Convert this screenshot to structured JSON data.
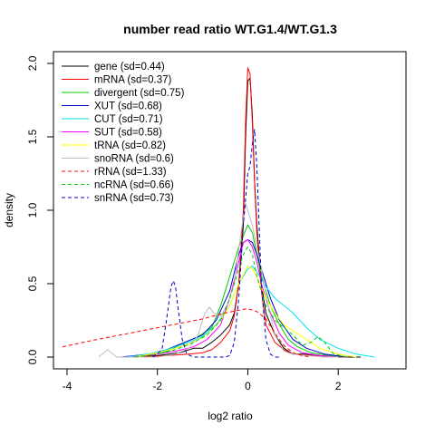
{
  "chart_data": {
    "type": "line",
    "title": "number read ratio WT.G1.4/WT.G1.3",
    "xlabel": "log2 ratio",
    "ylabel": "density",
    "xlim": [
      -4.3,
      3.5
    ],
    "ylim": [
      -0.08,
      2.08
    ],
    "xticks": [
      -4,
      -2,
      0,
      2
    ],
    "xtick_labels": [
      "-4",
      "-2",
      "0",
      "2"
    ],
    "yticks": [
      0.0,
      0.5,
      1.0,
      1.5,
      2.0
    ],
    "ytick_labels": [
      "0.0",
      "0.5",
      "1.0",
      "1.5",
      "2.0"
    ],
    "grid": false,
    "legend_position": "top-left",
    "series": [
      {
        "name": "gene (sd=0.44)",
        "color": "#000000",
        "dash": "solid",
        "x": [
          -2.6,
          -2.0,
          -1.5,
          -1.2,
          -1.0,
          -0.8,
          -0.6,
          -0.4,
          -0.3,
          -0.2,
          -0.1,
          -0.05,
          0.0,
          0.05,
          0.1,
          0.15,
          0.2,
          0.3,
          0.4,
          0.6,
          0.8,
          1.0,
          1.3,
          1.6,
          2.0,
          2.5
        ],
        "y": [
          0.0,
          0.01,
          0.03,
          0.06,
          0.06,
          0.1,
          0.15,
          0.22,
          0.3,
          0.5,
          0.9,
          1.5,
          1.88,
          1.9,
          1.65,
          1.2,
          0.9,
          0.5,
          0.3,
          0.15,
          0.06,
          0.02,
          0.02,
          0.01,
          0.0,
          0.0
        ]
      },
      {
        "name": "mRNA (sd=0.37)",
        "color": "#ff0000",
        "dash": "solid",
        "x": [
          -2.4,
          -1.8,
          -1.3,
          -1.0,
          -0.8,
          -0.6,
          -0.4,
          -0.3,
          -0.2,
          -0.1,
          -0.05,
          0.0,
          0.05,
          0.1,
          0.15,
          0.2,
          0.3,
          0.4,
          0.6,
          0.8,
          1.0,
          1.4,
          1.8,
          2.2
        ],
        "y": [
          0.0,
          0.01,
          0.02,
          0.03,
          0.05,
          0.1,
          0.18,
          0.28,
          0.5,
          1.0,
          1.6,
          1.97,
          1.93,
          1.6,
          1.2,
          0.85,
          0.45,
          0.22,
          0.1,
          0.05,
          0.02,
          0.01,
          0.0,
          0.0
        ]
      },
      {
        "name": "divergent (sd=0.75)",
        "color": "#00cc00",
        "dash": "solid",
        "x": [
          -2.5,
          -2.0,
          -1.7,
          -1.4,
          -1.1,
          -0.8,
          -0.6,
          -0.4,
          -0.2,
          0.0,
          0.1,
          0.2,
          0.3,
          0.5,
          0.7,
          0.9,
          1.1,
          1.4,
          1.8,
          2.2
        ],
        "y": [
          0.0,
          0.02,
          0.05,
          0.1,
          0.14,
          0.2,
          0.35,
          0.55,
          0.75,
          0.9,
          0.85,
          0.7,
          0.55,
          0.35,
          0.22,
          0.12,
          0.07,
          0.03,
          0.01,
          0.0
        ]
      },
      {
        "name": "XUT (sd=0.68)",
        "color": "#0000cc",
        "dash": "solid",
        "x": [
          -2.8,
          -2.2,
          -1.8,
          -1.4,
          -1.0,
          -0.7,
          -0.4,
          -0.2,
          -0.1,
          0.0,
          0.1,
          0.2,
          0.3,
          0.5,
          0.7,
          1.0,
          1.3,
          1.7,
          2.2
        ],
        "y": [
          0.0,
          0.02,
          0.05,
          0.1,
          0.15,
          0.25,
          0.45,
          0.7,
          0.78,
          0.8,
          0.78,
          0.7,
          0.6,
          0.4,
          0.25,
          0.12,
          0.06,
          0.02,
          0.0
        ]
      },
      {
        "name": "CUT (sd=0.71)",
        "color": "#00e5ee",
        "dash": "solid",
        "x": [
          -2.7,
          -2.2,
          -1.8,
          -1.4,
          -1.0,
          -0.7,
          -0.4,
          -0.2,
          0.0,
          0.1,
          0.2,
          0.4,
          0.6,
          0.8,
          1.0,
          1.3,
          1.6,
          2.0,
          2.4,
          2.8
        ],
        "y": [
          0.0,
          0.02,
          0.05,
          0.09,
          0.14,
          0.22,
          0.35,
          0.5,
          0.6,
          0.62,
          0.58,
          0.48,
          0.4,
          0.35,
          0.3,
          0.2,
          0.12,
          0.06,
          0.02,
          0.0
        ]
      },
      {
        "name": "SUT (sd=0.58)",
        "color": "#ff00ff",
        "dash": "solid",
        "x": [
          -2.6,
          -2.0,
          -1.6,
          -1.2,
          -0.9,
          -0.6,
          -0.4,
          -0.2,
          -0.1,
          0.0,
          0.1,
          0.2,
          0.3,
          0.5,
          0.7,
          0.9,
          1.2,
          1.6,
          2.0
        ],
        "y": [
          0.0,
          0.02,
          0.04,
          0.07,
          0.12,
          0.22,
          0.4,
          0.65,
          0.78,
          0.8,
          0.75,
          0.65,
          0.5,
          0.3,
          0.16,
          0.08,
          0.03,
          0.01,
          0.0
        ]
      },
      {
        "name": "tRNA (sd=0.82)",
        "color": "#ffff00",
        "dash": "solid",
        "x": [
          -2.5,
          -2.0,
          -1.6,
          -1.2,
          -0.9,
          -0.6,
          -0.4,
          -0.2,
          0.0,
          0.1,
          0.2,
          0.4,
          0.6,
          0.8,
          1.0,
          1.3,
          1.6,
          2.0,
          2.4
        ],
        "y": [
          0.0,
          0.03,
          0.06,
          0.1,
          0.15,
          0.25,
          0.35,
          0.5,
          0.62,
          0.6,
          0.55,
          0.4,
          0.3,
          0.22,
          0.18,
          0.12,
          0.06,
          0.02,
          0.0
        ]
      },
      {
        "name": "snoRNA (sd=0.6)",
        "color": "#bebebe",
        "dash": "solid",
        "x": [
          -3.3,
          -3.1,
          -2.9,
          -2.6,
          -2.0,
          -1.6,
          -1.3,
          -1.1,
          -0.95,
          -0.85,
          -0.75,
          -0.6,
          -0.45,
          -0.3,
          -0.15,
          -0.05,
          0.0,
          0.1,
          0.2,
          0.3,
          0.45,
          0.6,
          0.8,
          1.0,
          1.3,
          1.7,
          2.0
        ],
        "y": [
          0.0,
          0.05,
          0.0,
          0.0,
          0.0,
          0.02,
          0.06,
          0.15,
          0.3,
          0.34,
          0.3,
          0.28,
          0.36,
          0.5,
          0.85,
          1.05,
          1.0,
          0.9,
          0.75,
          0.6,
          0.35,
          0.15,
          0.04,
          0.02,
          0.01,
          0.0,
          0.0
        ]
      },
      {
        "name": "rRNA (sd=1.33)",
        "color": "#ff0000",
        "dash": "dashed",
        "x": [
          -4.1,
          -3.5,
          -3.0,
          -2.5,
          -2.0,
          -1.5,
          -1.0,
          -0.5,
          -0.2,
          0.0,
          0.2,
          0.4,
          0.6,
          0.8,
          1.0,
          1.2,
          1.4
        ],
        "y": [
          0.07,
          0.11,
          0.14,
          0.17,
          0.2,
          0.23,
          0.26,
          0.3,
          0.32,
          0.33,
          0.31,
          0.26,
          0.16,
          0.08,
          0.03,
          0.01,
          0.0
        ]
      },
      {
        "name": "ncRNA (sd=0.66)",
        "color": "#00cc00",
        "dash": "dashed",
        "x": [
          -2.5,
          -2.0,
          -1.6,
          -1.2,
          -0.9,
          -0.6,
          -0.4,
          -0.2,
          -0.1,
          0.0,
          0.1,
          0.2,
          0.4,
          0.6,
          0.8,
          1.0,
          1.2,
          1.4,
          1.55,
          1.7,
          1.9,
          2.2
        ],
        "y": [
          0.0,
          0.02,
          0.05,
          0.1,
          0.15,
          0.25,
          0.4,
          0.6,
          0.7,
          0.75,
          0.7,
          0.55,
          0.35,
          0.25,
          0.2,
          0.15,
          0.08,
          0.1,
          0.14,
          0.1,
          0.02,
          0.0
        ]
      },
      {
        "name": "snRNA (sd=0.73)",
        "color": "#0000cc",
        "dash": "dashed",
        "x": [
          -2.1,
          -1.9,
          -1.8,
          -1.7,
          -1.65,
          -1.6,
          -1.55,
          -1.45,
          -1.35,
          -1.2,
          -0.5,
          -0.4,
          -0.3,
          -0.2,
          -0.1,
          0.0,
          0.05,
          0.1,
          0.15,
          0.2,
          0.25,
          0.3,
          0.4,
          0.5,
          0.6,
          0.7
        ],
        "y": [
          0.0,
          0.05,
          0.25,
          0.48,
          0.52,
          0.48,
          0.35,
          0.12,
          0.02,
          0.0,
          0.0,
          0.01,
          0.1,
          0.4,
          0.9,
          1.25,
          1.3,
          1.45,
          1.55,
          1.3,
          0.9,
          0.5,
          0.12,
          0.02,
          0.0,
          0.0
        ]
      }
    ]
  }
}
